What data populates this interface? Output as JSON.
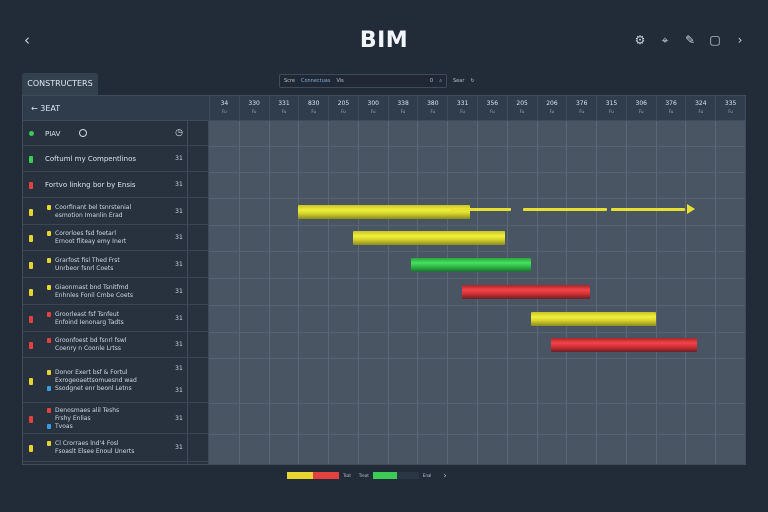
{
  "header": {
    "title": "BIM",
    "back_glyph": "‹",
    "tools": [
      {
        "icon": "settings-icon",
        "glyph": "⚙"
      },
      {
        "icon": "pin-icon",
        "glyph": "⌖"
      },
      {
        "icon": "pen-icon",
        "glyph": "✎"
      },
      {
        "icon": "doc-icon",
        "glyph": "▢"
      },
      {
        "icon": "forward-icon",
        "glyph": "›"
      }
    ]
  },
  "tab": {
    "label": "CONSTRUCTERS"
  },
  "toolbar": {
    "search_label": "Scre",
    "filter_label": "Connectuas",
    "view_label": "Vis",
    "zoom_label": "Sear",
    "count_label": "0"
  },
  "panel": {
    "header_label": "3EAT",
    "rows": [
      {
        "lines": [
          "PIAV"
        ],
        "value": "",
        "color": "#3ccb55"
      },
      {
        "lines": [
          "Coftuml my Compentlinos"
        ],
        "value": "31",
        "color": "#3ccb55"
      },
      {
        "lines": [
          "Fortvo linkng bor by Ensis"
        ],
        "value": "31",
        "color": "#e2413f"
      },
      {
        "lines": [
          "Coorfinant bel tsnrstenial",
          "esmotion Imanlin Erad"
        ],
        "value": "31",
        "color": "#e6d430"
      },
      {
        "lines": [
          "Cororloes fsd foetarl",
          "Ernoot fliteay emy Inert"
        ],
        "value": "31",
        "color": "#e6d430"
      },
      {
        "lines": [
          "Grarfost fisl Thed Frst",
          "Unrbeor fsnrl Coets"
        ],
        "value": "31",
        "color": "#e6d430"
      },
      {
        "lines": [
          "Giaonrnast bnd Tsnitfmd",
          "Enhnles Fonil Cmbe Coets"
        ],
        "value": "31",
        "color": "#e6d430"
      },
      {
        "lines": [
          "Groorleast fsf Tsnfeut",
          "Enfoind Ienonarg Tadts"
        ],
        "value": "31",
        "color": "#e2413f"
      },
      {
        "lines": [
          "Groonfoest bd fsnrl fswl",
          "Coenry n Coonle Lrtss"
        ],
        "value": "31",
        "color": "#e2413f"
      },
      {
        "lines": [
          "Donor Exert bsf & Fortul",
          "Exrogeoaettsomuesnd wad",
          "Ssodgnet enr beonl Letns"
        ],
        "value": "31",
        "value2": "31",
        "color": "#e6d430"
      },
      {
        "lines": [
          "Denosmaes alil Teshs",
          "Frshy Enlias",
          "Tvoas"
        ],
        "value": "31",
        "color": "#e2413f"
      },
      {
        "lines": [
          "Cl Crorraes lnd'4 Fosl",
          "Fsoaslt Elsee Enoul Unerts"
        ],
        "value": "31",
        "color": "#e6d430"
      }
    ]
  },
  "timeline": {
    "columns": [
      {
        "top": "34",
        "sub": "Fu"
      },
      {
        "top": "330",
        "sub": "Fu"
      },
      {
        "top": "331",
        "sub": "Fu"
      },
      {
        "top": "830",
        "sub": "Fu"
      },
      {
        "top": "205",
        "sub": "Fu"
      },
      {
        "top": "300",
        "sub": "Fu"
      },
      {
        "top": "338",
        "sub": "Fu"
      },
      {
        "top": "380",
        "sub": "Fu"
      },
      {
        "top": "331",
        "sub": "Fu"
      },
      {
        "top": "356",
        "sub": "Fu"
      },
      {
        "top": "205",
        "sub": "Fu"
      },
      {
        "top": "206",
        "sub": "Fu"
      },
      {
        "top": "376",
        "sub": "Fu"
      },
      {
        "top": "315",
        "sub": "Fu"
      },
      {
        "top": "306",
        "sub": "Fu"
      },
      {
        "top": "376",
        "sub": "Fu"
      },
      {
        "top": "324",
        "sub": "Fu"
      },
      {
        "top": "335",
        "sub": "Fu"
      }
    ],
    "bars": [
      {
        "row": 4,
        "start": 3.0,
        "end": 8.75,
        "color": "yellow"
      },
      {
        "row": 5,
        "start": 4.85,
        "end": 9.95,
        "color": "yellow"
      },
      {
        "row": 6,
        "start": 6.8,
        "end": 10.8,
        "color": "green"
      },
      {
        "row": 7,
        "start": 8.5,
        "end": 12.8,
        "color": "red"
      },
      {
        "row": 8,
        "start": 10.8,
        "end": 15.0,
        "color": "yellow"
      },
      {
        "row": 9,
        "start": 11.5,
        "end": 16.4,
        "color": "red"
      }
    ],
    "dependency": {
      "row": 4,
      "start": 8.1,
      "end": 16.7,
      "color": "#e6e030"
    }
  },
  "legend": {
    "items": [
      {
        "color": "#e6d430",
        "label": ""
      },
      {
        "color": "#e2413f",
        "label": "Tsat"
      },
      {
        "color": "#2a3644",
        "label": "Treat"
      },
      {
        "color": "#3ccb55",
        "label": ""
      },
      {
        "color": "#2a3644",
        "label": "Enal"
      }
    ]
  }
}
